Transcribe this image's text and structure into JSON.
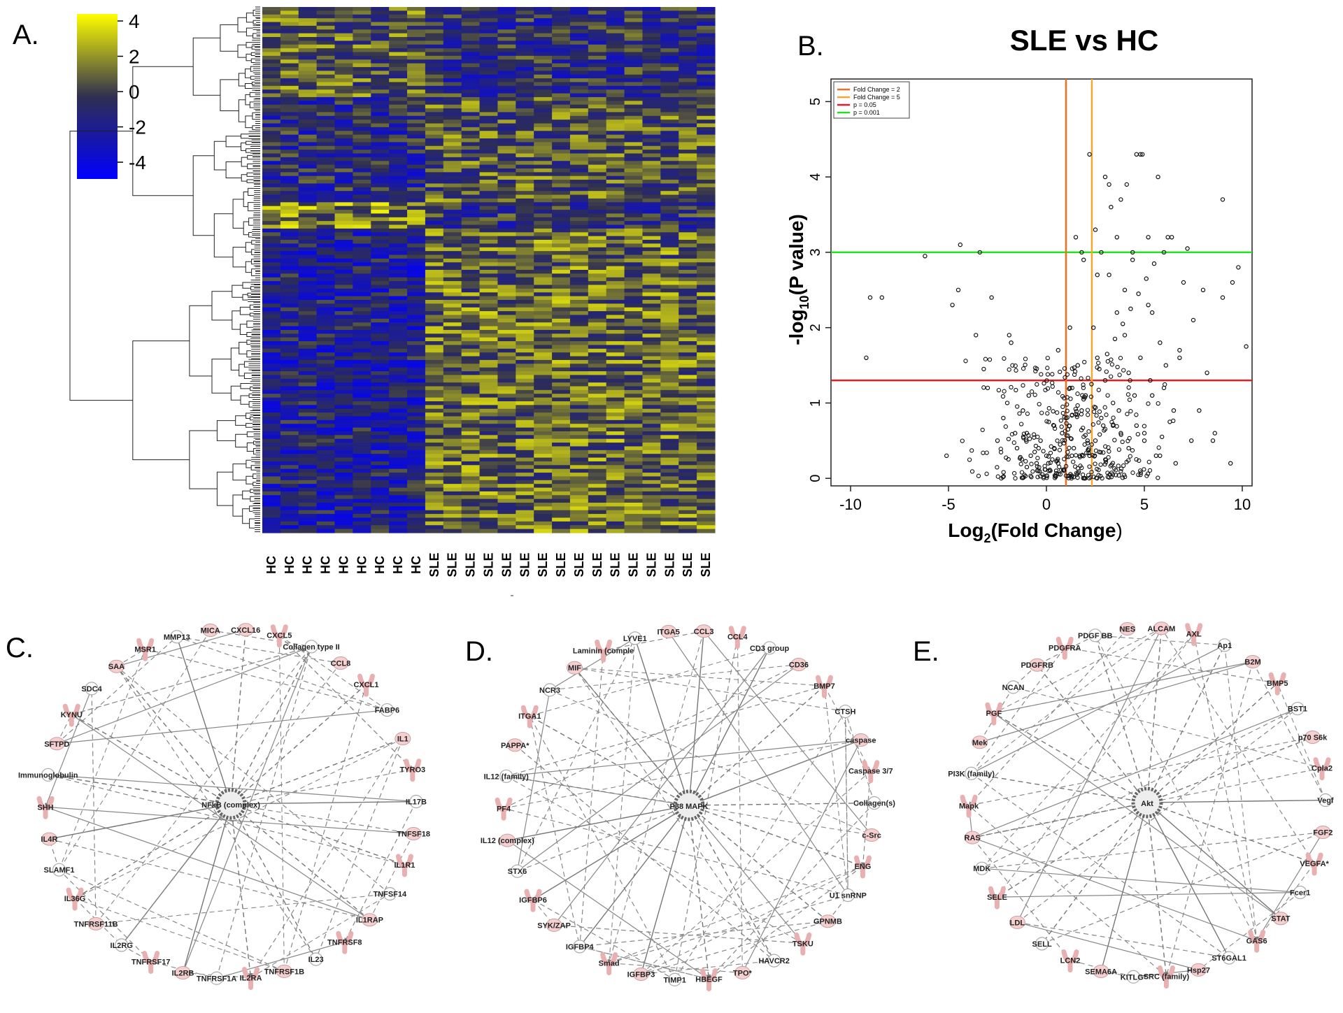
{
  "panels": {
    "A": "A.",
    "B": "B.",
    "C": "C.",
    "D": "D.",
    "E": "E."
  },
  "heatmap": {
    "scale_ticks": [
      "4",
      "2",
      "0",
      "-2",
      "-4"
    ],
    "scale_values": [
      4,
      2,
      0,
      -2,
      -4
    ],
    "columns": [
      "HC",
      "HC",
      "HC",
      "HC",
      "HC",
      "HC",
      "HC",
      "HC",
      "HC",
      "SLE",
      "SLE",
      "SLE",
      "SLE",
      "SLE",
      "SLE",
      "SLE",
      "SLE",
      "SLE",
      "SLE",
      "SLE",
      "SLE",
      "SLE",
      "SLE",
      "SLE",
      "SLE"
    ],
    "colors": {
      "high": "#ffff00",
      "mid": "#2f2f4f",
      "low": "#0000ff"
    }
  },
  "volcano": {
    "title": "SLE vs HC",
    "xlabel_main": "Log",
    "xlabel_sub": "2",
    "xlabel_rest": "(Fold Change",
    "xlabel_paren": ")",
    "ylabel_main": "-log",
    "ylabel_sub": "10",
    "ylabel_rest": "(P value)",
    "xticks": [
      "-10",
      "-5",
      "0",
      "5",
      "10"
    ],
    "yticks": [
      "0",
      "1",
      "2",
      "3",
      "4",
      "5"
    ],
    "legend": [
      "Fold Change = 2",
      "Fold Change = 5",
      "p = 0.05",
      "p = 0.001"
    ],
    "colors": {
      "fc2": "#f07020",
      "fc5": "#f5a830",
      "p05": "#e02020",
      "p001": "#20e020"
    }
  },
  "chart_data": {
    "type": "scatter",
    "title": "SLE vs HC",
    "xlabel": "Log2(Fold Change)",
    "ylabel": "-log10(P value)",
    "xlim": [
      -11,
      10.5
    ],
    "ylim": [
      -0.1,
      5.3
    ],
    "reference_lines": {
      "vertical": [
        1,
        2.32
      ],
      "horizontal": [
        1.3,
        3
      ]
    },
    "series": [
      {
        "name": "genes",
        "x": [
          -9.2,
          -9.0,
          -8.4,
          -6.2,
          -5.1,
          -4.8,
          -4.4,
          -3.6,
          -3.4,
          -3.2,
          -2.8,
          -2.5,
          -2.0,
          -1.8,
          -1.5,
          -1.2,
          -1.0,
          -0.8,
          -0.5,
          -0.3,
          0.0,
          0.2,
          0.4,
          0.6,
          0.8,
          1.0,
          1.2,
          1.4,
          1.6,
          1.8,
          2.0,
          2.2,
          2.4,
          2.6,
          2.8,
          3.0,
          3.2,
          3.4,
          3.6,
          3.8,
          4.0,
          4.2,
          4.4,
          4.6,
          4.8,
          5.0,
          5.2,
          5.4,
          5.6,
          5.8,
          6.0,
          6.2,
          6.5,
          6.8,
          7.2,
          7.5,
          7.8,
          8.2,
          8.6,
          9.0,
          9.4,
          9.8,
          10.2,
          -1.0,
          -0.6,
          -0.2,
          0.3,
          0.7,
          1.1,
          1.5,
          1.9,
          2.3,
          2.7,
          3.1,
          3.5,
          3.9,
          4.3,
          4.7,
          5.1,
          5.5,
          5.9,
          6.3,
          0.5,
          1.3,
          2.1,
          2.9,
          3.7,
          4.5,
          5.3,
          6.1,
          1.8,
          2.5,
          3.3,
          4.1,
          4.9,
          5.7,
          2.2,
          3.0,
          3.8,
          4.6,
          1.5,
          2.8,
          3.6,
          4.4,
          5.2,
          6.0,
          7.0,
          8.0,
          9.0,
          1.2,
          2.6,
          4.0,
          5.4,
          6.8,
          -2.2,
          -1.6,
          -0.4,
          0.1,
          0.9,
          1.7,
          2.5,
          3.4,
          4.2,
          5.0,
          5.8,
          6.6,
          7.4,
          -4.5,
          -3.0,
          -1.9,
          -0.9,
          0.6,
          1.9,
          3.2,
          4.8,
          6.4,
          8.5,
          9.5
        ],
        "y": [
          1.6,
          2.4,
          2.4,
          2.95,
          0.3,
          2.3,
          3.1,
          1.9,
          3.0,
          1.45,
          2.4,
          0.5,
          1.0,
          1.8,
          0.4,
          0.9,
          0.6,
          0.3,
          0.2,
          0.5,
          0.3,
          0.1,
          0.4,
          0.2,
          0.6,
          0.8,
          1.2,
          0.4,
          1.5,
          0.9,
          1.1,
          0.3,
          2.0,
          1.6,
          0.8,
          1.3,
          2.7,
          1.0,
          2.2,
          0.6,
          1.9,
          1.4,
          2.9,
          0.7,
          1.6,
          0.5,
          2.3,
          1.1,
          0.3,
          1.8,
          1.2,
          3.2,
          0.9,
          1.7,
          3.05,
          2.1,
          0.9,
          1.4,
          0.6,
          3.7,
          0.2,
          2.8,
          1.75,
          0.15,
          0.35,
          0.05,
          0.25,
          0.45,
          0.65,
          0.85,
          1.05,
          1.25,
          1.45,
          1.65,
          1.85,
          2.05,
          2.25,
          2.45,
          2.65,
          2.85,
          0.55,
          0.75,
          0.1,
          0.3,
          0.5,
          0.7,
          0.9,
          1.1,
          1.3,
          1.5,
          3.0,
          3.3,
          3.6,
          3.9,
          4.3,
          4.0,
          4.3,
          4.0,
          3.7,
          4.3,
          3.2,
          3.0,
          3.2,
          3.0,
          3.2,
          3.0,
          2.6,
          2.5,
          2.4,
          2.0,
          2.7,
          2.5,
          2.2,
          1.6,
          0.8,
          0.6,
          0.4,
          0.2,
          0.1,
          0.3,
          0.5,
          0.7,
          0.4,
          0.6,
          0.3,
          0.2,
          0.5,
          2.5,
          1.2,
          1.9,
          1.1,
          1.7,
          2.9,
          3.9,
          4.3,
          3.2,
          0.5,
          2.6
        ]
      }
    ]
  },
  "network_C": {
    "hub": "NFkB (complex)",
    "nodes": [
      "CXCL16",
      "CXCL5",
      "Collagen type II",
      "CCL8",
      "CXCL1",
      "FABP6",
      "IL1",
      "TYRO3",
      "IL17B",
      "TNFSF18",
      "IL1R1",
      "TNFSF14",
      "IL1RAP",
      "TNFRSF8",
      "IL23",
      "TNFRSF1B",
      "IL2RA",
      "TNFRSF1A",
      "IL2RB",
      "TNFRSF17",
      "IL2RG",
      "TNFRSF11B",
      "IL36G",
      "SLAMF1",
      "IL4R",
      "SHH",
      "Immunoglobulin",
      "SFTPD",
      "KYNU",
      "SDC4",
      "SAA",
      "MSR1",
      "MMP13",
      "MICA"
    ]
  },
  "network_D": {
    "hub": "P38 MAPK",
    "nodes": [
      "CCL3",
      "CCL4",
      "CD3 group",
      "CD36",
      "BMP7",
      "CTSH",
      "caspase",
      "Caspase 3/7",
      "Collagen(s)",
      "c-Src",
      "ENG",
      "U1 snRNP",
      "GPNMB",
      "TSKU",
      "HAVCR2",
      "TPO*",
      "HBEGF",
      "TIMP1",
      "IGFBP3",
      "Smad",
      "IGFBP4",
      "SYK/ZAP",
      "IGFBP6",
      "STX6",
      "IL12 (complex)",
      "PF4",
      "IL12 (family)",
      "PAPPA*",
      "ITGA1",
      "NCR3",
      "MIF",
      "Laminin (comple",
      "LYVE1",
      "ITGA5"
    ]
  },
  "network_E": {
    "hub": "Akt",
    "nodes": [
      "ALCAM",
      "AXL",
      "Ap1",
      "B2M",
      "BMP5",
      "BST1",
      "p70 S6k",
      "Cpla2",
      "Vegf",
      "FGF2",
      "VEGFA*",
      "Fcer1",
      "STAT",
      "GAS6",
      "ST6GAL1",
      "Hsp27",
      "SRC (family)",
      "KITLG*",
      "SEMA6A",
      "LCN2",
      "SELL",
      "LDL",
      "SELE",
      "MDK",
      "RAS",
      "Mapk",
      "PI3K (family)",
      "Mek",
      "PGF",
      "NCAN",
      "PDGFRB",
      "PDGFRA",
      "PDGF BB",
      "NES"
    ]
  }
}
